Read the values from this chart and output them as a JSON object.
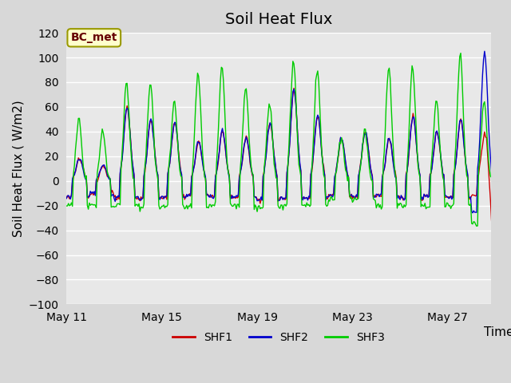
{
  "title": "Soil Heat Flux",
  "ylabel": "Soil Heat Flux ( W/m2)",
  "xlabel": "Time",
  "legend_label": "BC_met",
  "ylim": [
    -100,
    120
  ],
  "yticks": [
    -100,
    -80,
    -60,
    -40,
    -20,
    0,
    20,
    40,
    60,
    80,
    100,
    120
  ],
  "xtick_labels": [
    "May 11",
    "May 15",
    "May 19",
    "May 23",
    "May 27"
  ],
  "line_colors": {
    "SHF1": "#cc0000",
    "SHF2": "#0000cc",
    "SHF3": "#00cc00"
  },
  "line_labels": [
    "SHF1",
    "SHF2",
    "SHF3"
  ],
  "bg_color": "#e8e8e8",
  "plot_bg_color": "#e8e8e8",
  "grid_color": "#ffffff",
  "title_fontsize": 14,
  "axis_label_fontsize": 11,
  "tick_fontsize": 10,
  "legend_box_color": "#ffffcc",
  "legend_box_edge": "#999900"
}
